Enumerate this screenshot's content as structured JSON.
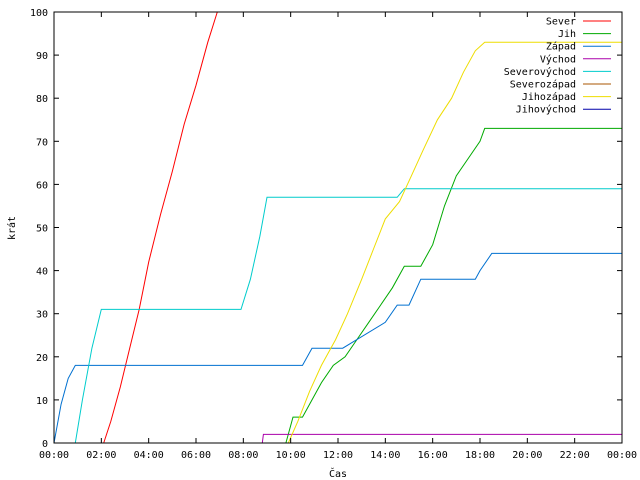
{
  "chart_data": {
    "type": "line",
    "xlabel": "Čas",
    "ylabel": "krát",
    "xlim": [
      0,
      24
    ],
    "ylim": [
      0,
      100
    ],
    "x_ticks": [
      "00:00",
      "02:00",
      "04:00",
      "06:00",
      "08:00",
      "10:00",
      "12:00",
      "14:00",
      "16:00",
      "18:00",
      "20:00",
      "22:00",
      "00:00"
    ],
    "y_ticks": [
      "0",
      "10",
      "20",
      "30",
      "40",
      "50",
      "60",
      "70",
      "80",
      "90",
      "100"
    ],
    "grid": false,
    "legend_position": "top-right",
    "series": [
      {
        "name": "Sever",
        "color": "#ff0000",
        "x": [
          2.1,
          2.4,
          2.8,
          3.2,
          3.6,
          4.0,
          4.5,
          5.0,
          5.5,
          6.0,
          6.5,
          6.9
        ],
        "y": [
          0,
          5,
          13,
          22,
          31,
          42,
          53,
          63,
          74,
          83,
          93,
          100
        ]
      },
      {
        "name": "Jih",
        "color": "#00aa00",
        "x": [
          9.8,
          10.1,
          10.5,
          10.9,
          11.3,
          11.8,
          12.3,
          12.8,
          13.3,
          13.8,
          14.3,
          14.8,
          15.5,
          16.0,
          16.5,
          17.0,
          17.5,
          18.0,
          18.2,
          18.5,
          24.0
        ],
        "y": [
          0,
          6,
          6,
          10,
          14,
          18,
          20,
          24,
          28,
          32,
          36,
          41,
          41,
          46,
          55,
          62,
          66,
          70,
          73,
          73,
          73
        ]
      },
      {
        "name": "Západ",
        "color": "#0070d0",
        "x": [
          0.0,
          0.3,
          0.6,
          0.9,
          1.0,
          10.5,
          10.9,
          12.2,
          12.8,
          14.0,
          14.5,
          15.0,
          15.5,
          16.3,
          17.8,
          18.0,
          18.5,
          24.0
        ],
        "y": [
          0,
          9,
          15,
          18,
          18,
          18,
          22,
          22,
          24,
          28,
          32,
          32,
          38,
          38,
          38,
          40,
          44,
          44
        ]
      },
      {
        "name": "Východ",
        "color": "#aa00aa",
        "x": [
          8.8,
          8.85,
          24.0
        ],
        "y": [
          0,
          2,
          2
        ]
      },
      {
        "name": "Severovýchod",
        "color": "#00cccc",
        "x": [
          0.9,
          1.2,
          1.6,
          2.0,
          7.9,
          8.3,
          8.7,
          9.0,
          9.6,
          14.5,
          14.8,
          24.0
        ],
        "y": [
          0,
          10,
          22,
          31,
          31,
          38,
          48,
          57,
          57,
          57,
          59,
          59
        ]
      },
      {
        "name": "Severozápad",
        "color": "#aa5500",
        "x": [],
        "y": []
      },
      {
        "name": "Jihozápad",
        "color": "#eedd00",
        "x": [
          9.9,
          10.3,
          10.8,
          11.3,
          11.9,
          12.4,
          13.0,
          13.5,
          14.0,
          14.6,
          15.1,
          15.6,
          16.2,
          16.8,
          17.3,
          17.8,
          18.2,
          24.0
        ],
        "y": [
          0,
          5,
          12,
          18,
          24,
          30,
          38,
          45,
          52,
          56,
          62,
          68,
          75,
          80,
          86,
          91,
          93,
          93
        ]
      },
      {
        "name": "Jihovýchod",
        "color": "#0000aa",
        "x": [],
        "y": []
      }
    ]
  }
}
